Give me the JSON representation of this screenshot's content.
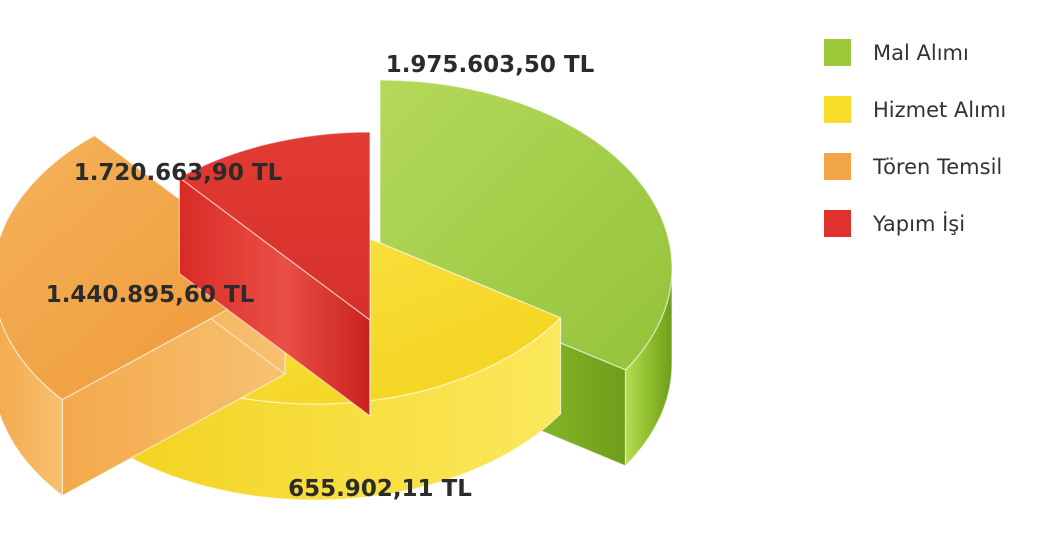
{
  "chart_data": {
    "type": "pie",
    "style": "3d-exploded",
    "legend_position": "right",
    "slices": [
      {
        "name": "Mal Alımı",
        "value": 1975603.5,
        "label": "1.975.603,50 TL",
        "color": "#9cc83a"
      },
      {
        "name": "Hizmet Alımı",
        "value": 1720663.9,
        "label": "1.720.663,90 TL",
        "color": "#f7dc2a"
      },
      {
        "name": "Tören Temsil",
        "value": 1440895.6,
        "label": "1.440.895,60 TL",
        "color": "#f2a548"
      },
      {
        "name": "Yapım İşi",
        "value": 655902.11,
        "label": "655.902,11 TL",
        "color": "#e0312c"
      }
    ]
  }
}
